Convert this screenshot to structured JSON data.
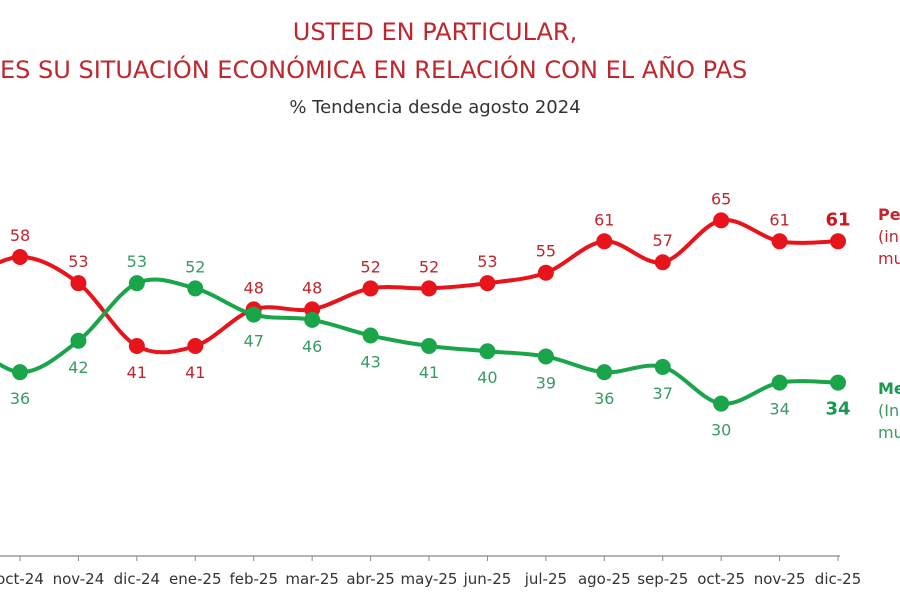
{
  "title": "USTED EN PARTICULAR,",
  "subtitle": "ES SU SITUACIÓN ECONÓMICA EN RELACIÓN CON EL AÑO PAS",
  "caption": "%  Tendencia desde agosto 2024",
  "legend": {
    "red": [
      "Pe",
      "(in",
      "mu"
    ],
    "green": [
      "Me",
      "(In",
      "mu"
    ]
  },
  "colors": {
    "red": "#e8141c",
    "green": "#1aa54b",
    "red_label": "#c0272d",
    "green_label": "#3a9a64"
  },
  "chart_data": {
    "type": "line",
    "title": "USTED EN PARTICULAR,",
    "categories": [
      "oct-24",
      "nov-24",
      "dic-24",
      "ene-25",
      "feb-25",
      "mar-25",
      "abr-25",
      "may-25",
      "jun-25",
      "jul-25",
      "ago-25",
      "sep-25",
      "oct-25",
      "nov-25",
      "dic-25"
    ],
    "series": [
      {
        "key": "red",
        "values": [
          58,
          53,
          41,
          41,
          48,
          48,
          52,
          52,
          53,
          55,
          61,
          57,
          65,
          61,
          61
        ]
      },
      {
        "key": "green",
        "values": [
          36,
          42,
          53,
          52,
          47,
          46,
          43,
          41,
          40,
          39,
          36,
          37,
          30,
          34,
          34
        ]
      }
    ],
    "grid": false,
    "legend_placement": "right"
  }
}
